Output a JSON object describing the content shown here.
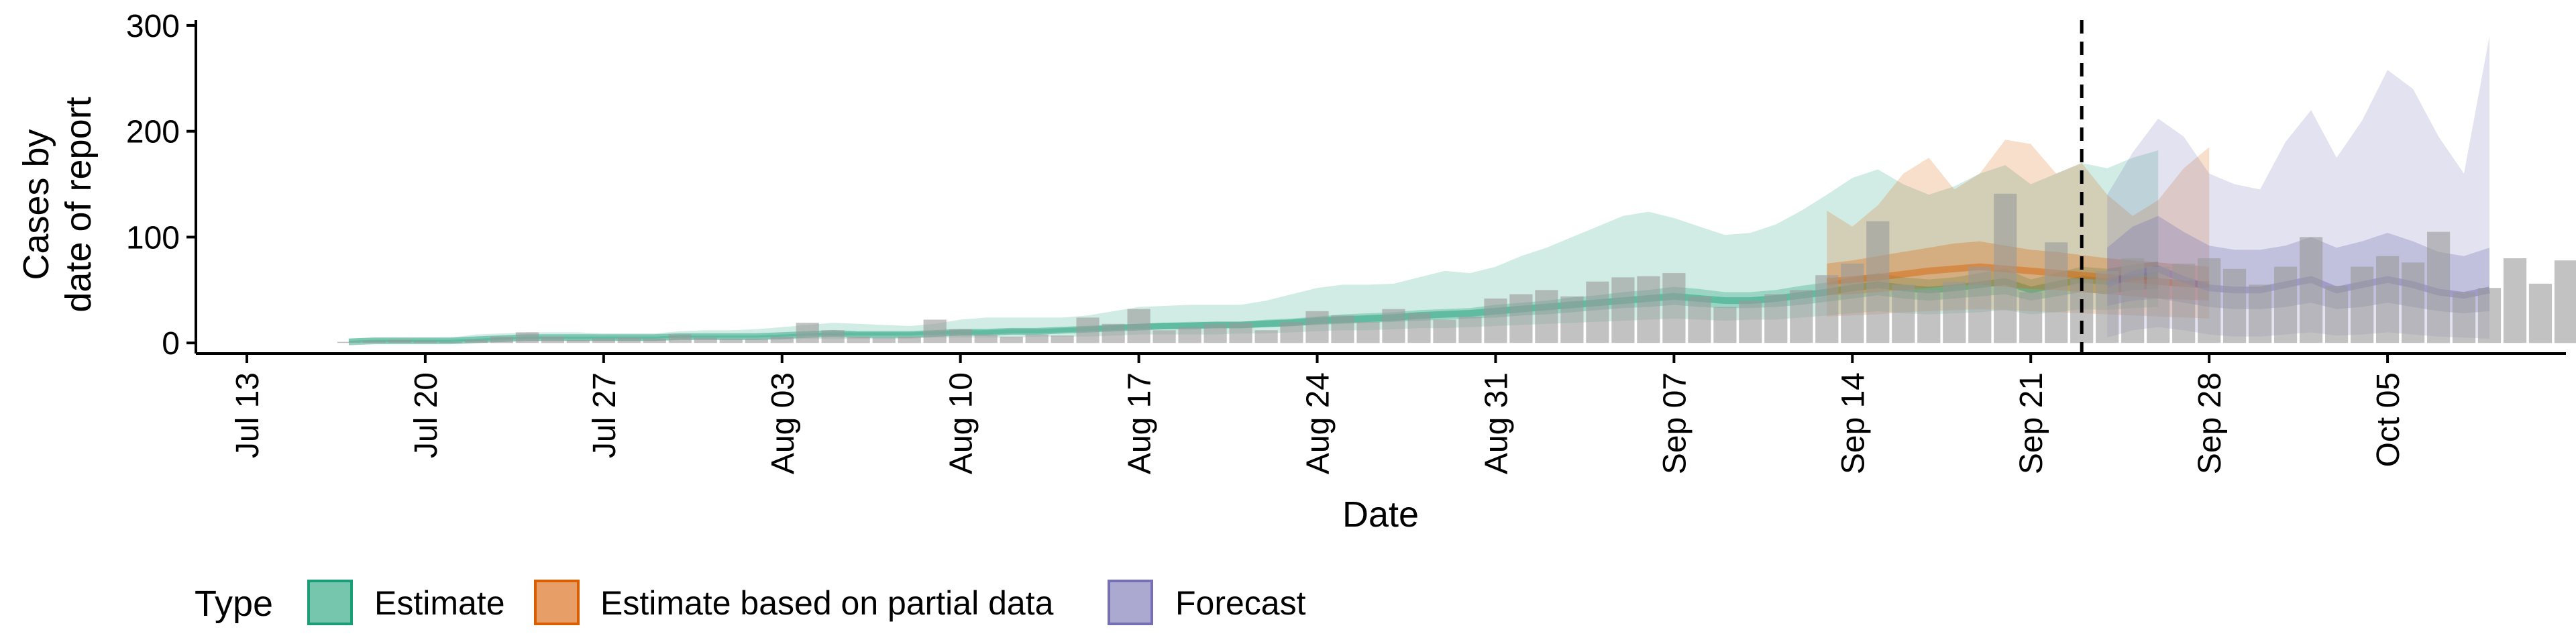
{
  "chart_data": {
    "type": "bar+ribbon",
    "xlabel": "Date",
    "ylabel_lines": [
      "Cases by",
      "date of report"
    ],
    "ylim": [
      -10,
      305
    ],
    "yticks": [
      0,
      100,
      200,
      300
    ],
    "x_start_date": "2020-07-11",
    "x_end_date": "2020-10-12",
    "xticks": [
      {
        "date": "2020-07-13",
        "label": "Jul 13"
      },
      {
        "date": "2020-07-20",
        "label": "Jul 20"
      },
      {
        "date": "2020-07-27",
        "label": "Jul 27"
      },
      {
        "date": "2020-08-03",
        "label": "Aug 03"
      },
      {
        "date": "2020-08-10",
        "label": "Aug 10"
      },
      {
        "date": "2020-08-17",
        "label": "Aug 17"
      },
      {
        "date": "2020-08-24",
        "label": "Aug 24"
      },
      {
        "date": "2020-08-31",
        "label": "Aug 31"
      },
      {
        "date": "2020-09-07",
        "label": "Sep 07"
      },
      {
        "date": "2020-09-14",
        "label": "Sep 14"
      },
      {
        "date": "2020-09-21",
        "label": "Sep 21"
      },
      {
        "date": "2020-09-28",
        "label": "Sep 28"
      },
      {
        "date": "2020-10-05",
        "label": "Oct 05"
      }
    ],
    "vline_date": "2020-09-23",
    "reported_cases": {
      "start_date": "2020-07-17",
      "values": [
        1,
        2,
        3,
        2,
        1,
        3,
        6,
        10,
        6,
        3,
        4,
        5,
        4,
        8,
        5,
        4,
        4,
        6,
        19,
        12,
        6,
        5,
        6,
        22,
        13,
        8,
        6,
        8,
        7,
        24,
        18,
        32,
        12,
        15,
        18,
        19,
        12,
        20,
        30,
        26,
        20,
        32,
        28,
        22,
        25,
        42,
        46,
        50,
        44,
        58,
        62,
        63,
        66,
        44,
        34,
        40,
        46,
        50,
        64,
        75,
        115,
        55,
        50,
        58,
        72,
        141,
        48,
        95,
        60,
        68,
        80,
        72,
        75,
        80,
        70,
        55,
        72,
        100,
        54,
        72,
        82,
        76,
        105,
        48,
        52,
        80,
        56,
        78,
        90
      ]
    },
    "series": [
      {
        "name": "Estimate",
        "color": "#1b9e77",
        "start_date": "2020-07-17",
        "median": [
          1,
          2,
          2,
          2,
          2,
          3,
          4,
          5,
          5,
          5,
          5,
          5,
          5,
          6,
          6,
          6,
          6,
          7,
          8,
          9,
          8,
          8,
          8,
          9,
          10,
          10,
          11,
          11,
          12,
          13,
          14,
          15,
          16,
          16,
          17,
          17,
          18,
          19,
          21,
          22,
          23,
          24,
          26,
          27,
          28,
          30,
          32,
          34,
          36,
          38,
          40,
          42,
          44,
          42,
          40,
          40,
          42,
          45,
          48,
          52,
          55,
          52,
          50,
          52,
          55,
          58,
          50,
          55,
          60,
          58,
          62,
          64
        ],
        "p50": [
          [
            1,
            2
          ],
          [
            1,
            3
          ],
          [
            1,
            3
          ],
          [
            1,
            3
          ],
          [
            1,
            3
          ],
          [
            2,
            4
          ],
          [
            3,
            5
          ],
          [
            4,
            6
          ],
          [
            4,
            6
          ],
          [
            4,
            6
          ],
          [
            4,
            6
          ],
          [
            4,
            6
          ],
          [
            4,
            6
          ],
          [
            5,
            7
          ],
          [
            5,
            7
          ],
          [
            5,
            7
          ],
          [
            5,
            7
          ],
          [
            6,
            8
          ],
          [
            7,
            9
          ],
          [
            7,
            10
          ],
          [
            7,
            10
          ],
          [
            7,
            10
          ],
          [
            7,
            10
          ],
          [
            8,
            11
          ],
          [
            8,
            12
          ],
          [
            8,
            12
          ],
          [
            9,
            13
          ],
          [
            9,
            13
          ],
          [
            10,
            14
          ],
          [
            11,
            15
          ],
          [
            12,
            17
          ],
          [
            13,
            18
          ],
          [
            13,
            19
          ],
          [
            14,
            20
          ],
          [
            14,
            20
          ],
          [
            14,
            20
          ],
          [
            15,
            22
          ],
          [
            16,
            23
          ],
          [
            17,
            25
          ],
          [
            18,
            27
          ],
          [
            19,
            28
          ],
          [
            20,
            29
          ],
          [
            21,
            31
          ],
          [
            22,
            32
          ],
          [
            23,
            33
          ],
          [
            24,
            36
          ],
          [
            26,
            38
          ],
          [
            27,
            40
          ],
          [
            29,
            43
          ],
          [
            31,
            45
          ],
          [
            33,
            48
          ],
          [
            34,
            50
          ],
          [
            36,
            53
          ],
          [
            34,
            51
          ],
          [
            33,
            48
          ],
          [
            33,
            48
          ],
          [
            34,
            50
          ],
          [
            36,
            54
          ],
          [
            39,
            57
          ],
          [
            42,
            62
          ],
          [
            45,
            66
          ],
          [
            42,
            62
          ],
          [
            40,
            60
          ],
          [
            42,
            62
          ],
          [
            44,
            66
          ],
          [
            46,
            70
          ],
          [
            40,
            60
          ],
          [
            44,
            66
          ],
          [
            48,
            72
          ],
          [
            46,
            70
          ],
          [
            50,
            74
          ],
          [
            51,
            77
          ]
        ],
        "p90": [
          [
            0,
            4
          ],
          [
            0,
            5
          ],
          [
            0,
            5
          ],
          [
            0,
            5
          ],
          [
            0,
            5
          ],
          [
            1,
            8
          ],
          [
            1,
            9
          ],
          [
            2,
            10
          ],
          [
            2,
            10
          ],
          [
            2,
            10
          ],
          [
            2,
            9
          ],
          [
            2,
            9
          ],
          [
            2,
            9
          ],
          [
            3,
            11
          ],
          [
            3,
            12
          ],
          [
            3,
            12
          ],
          [
            3,
            13
          ],
          [
            3,
            15
          ],
          [
            4,
            17
          ],
          [
            4,
            19
          ],
          [
            4,
            18
          ],
          [
            4,
            17
          ],
          [
            4,
            16
          ],
          [
            5,
            18
          ],
          [
            5,
            22
          ],
          [
            5,
            24
          ],
          [
            5,
            24
          ],
          [
            6,
            24
          ],
          [
            6,
            24
          ],
          [
            6,
            26
          ],
          [
            7,
            30
          ],
          [
            8,
            34
          ],
          [
            8,
            35
          ],
          [
            8,
            36
          ],
          [
            8,
            36
          ],
          [
            9,
            36
          ],
          [
            9,
            40
          ],
          [
            10,
            46
          ],
          [
            11,
            52
          ],
          [
            12,
            55
          ],
          [
            12,
            55
          ],
          [
            13,
            56
          ],
          [
            14,
            62
          ],
          [
            14,
            68
          ],
          [
            15,
            66
          ],
          [
            16,
            72
          ],
          [
            17,
            82
          ],
          [
            18,
            90
          ],
          [
            19,
            100
          ],
          [
            20,
            110
          ],
          [
            21,
            120
          ],
          [
            22,
            124
          ],
          [
            23,
            118
          ],
          [
            22,
            110
          ],
          [
            21,
            102
          ],
          [
            22,
            104
          ],
          [
            22,
            112
          ],
          [
            24,
            125
          ],
          [
            26,
            140
          ],
          [
            28,
            156
          ],
          [
            30,
            164
          ],
          [
            28,
            150
          ],
          [
            27,
            140
          ],
          [
            28,
            148
          ],
          [
            29,
            160
          ],
          [
            31,
            168
          ],
          [
            27,
            150
          ],
          [
            29,
            160
          ],
          [
            32,
            170
          ],
          [
            31,
            165
          ],
          [
            33,
            175
          ],
          [
            34,
            182
          ]
        ]
      },
      {
        "name": "Estimate based on partial data",
        "color": "#d95f02",
        "start_date": "2020-09-13",
        "median": [
          58,
          60,
          62,
          65,
          68,
          70,
          72,
          70,
          68,
          66,
          64,
          62,
          60,
          58,
          56,
          55
        ],
        "p50": [
          [
            45,
            75
          ],
          [
            46,
            78
          ],
          [
            48,
            82
          ],
          [
            50,
            86
          ],
          [
            52,
            90
          ],
          [
            54,
            94
          ],
          [
            55,
            96
          ],
          [
            53,
            92
          ],
          [
            51,
            88
          ],
          [
            50,
            86
          ],
          [
            48,
            83
          ],
          [
            46,
            80
          ],
          [
            44,
            78
          ],
          [
            42,
            76
          ],
          [
            41,
            74
          ],
          [
            40,
            72
          ]
        ],
        "p90": [
          [
            25,
            125
          ],
          [
            26,
            110
          ],
          [
            27,
            130
          ],
          [
            29,
            160
          ],
          [
            30,
            175
          ],
          [
            31,
            145
          ],
          [
            32,
            160
          ],
          [
            31,
            192
          ],
          [
            30,
            188
          ],
          [
            29,
            160
          ],
          [
            28,
            170
          ],
          [
            27,
            140
          ],
          [
            26,
            120
          ],
          [
            25,
            135
          ],
          [
            24,
            165
          ],
          [
            23,
            185
          ]
        ]
      },
      {
        "name": "Forecast",
        "color": "#7570b3",
        "start_date": "2020-09-24",
        "median": [
          55,
          65,
          70,
          60,
          52,
          50,
          50,
          55,
          60,
          50,
          55,
          60,
          55,
          48,
          45,
          50
        ],
        "p50": [
          [
            35,
            90
          ],
          [
            40,
            110
          ],
          [
            42,
            120
          ],
          [
            38,
            105
          ],
          [
            34,
            92
          ],
          [
            32,
            88
          ],
          [
            32,
            88
          ],
          [
            34,
            92
          ],
          [
            38,
            100
          ],
          [
            32,
            90
          ],
          [
            34,
            96
          ],
          [
            38,
            104
          ],
          [
            34,
            96
          ],
          [
            30,
            86
          ],
          [
            28,
            82
          ],
          [
            30,
            90
          ]
        ],
        "p90": [
          [
            5,
            140
          ],
          [
            12,
            180
          ],
          [
            15,
            212
          ],
          [
            12,
            195
          ],
          [
            8,
            160
          ],
          [
            6,
            150
          ],
          [
            6,
            145
          ],
          [
            8,
            190
          ],
          [
            10,
            220
          ],
          [
            7,
            175
          ],
          [
            8,
            210
          ],
          [
            10,
            258
          ],
          [
            8,
            240
          ],
          [
            6,
            195
          ],
          [
            5,
            160
          ],
          [
            4,
            290
          ]
        ]
      }
    ],
    "legend": {
      "title": "Type",
      "position": "bottom",
      "items": [
        {
          "label": "Estimate",
          "color": "#1b9e77"
        },
        {
          "label": "Estimate based on partial data",
          "color": "#d95f02"
        },
        {
          "label": "Forecast",
          "color": "#7570b3"
        }
      ]
    },
    "grid": false
  }
}
